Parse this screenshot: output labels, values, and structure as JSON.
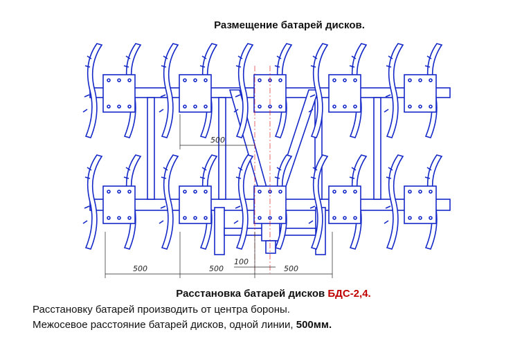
{
  "title": "Размещение батарей дисков.",
  "dimensions": {
    "upper": "500",
    "lower_left": "500",
    "lower_middle": "500",
    "center": "100",
    "lower_right": "500"
  },
  "caption": {
    "text": "Расстановка батарей дисков ",
    "model": "БДС-2,4."
  },
  "notes": [
    {
      "text": "Расстановку батарей производить от центра бороны."
    },
    {
      "text": "Межосевое расстояние батарей дисков, одной линии, ",
      "bold": "500мм."
    }
  ]
}
